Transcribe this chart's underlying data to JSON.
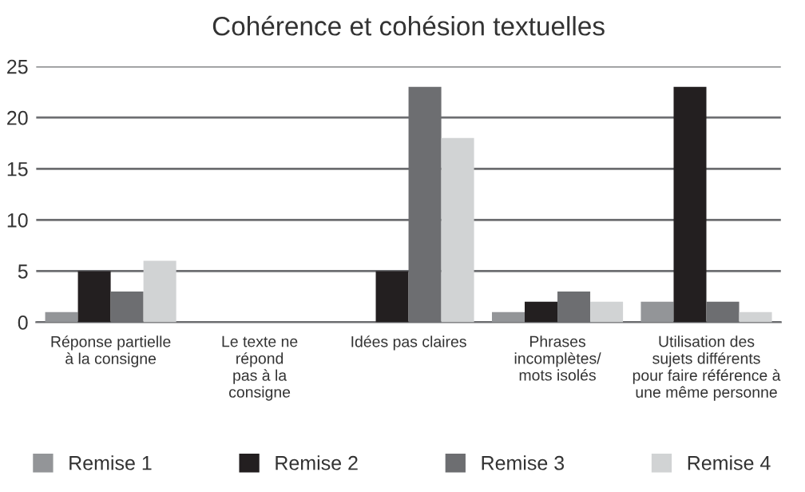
{
  "chart_data": {
    "type": "bar",
    "title": "Cohérence et cohésion textuelles",
    "categories": [
      "Réponse partielle\nà la consigne",
      "Le texte ne\nrépond\npas à la\nconsigne",
      "Idées pas claires",
      "Phrases\nincomplètes/\nmots isolés",
      "Utilisation des\nsujets différents\npour faire référence à\nune même personne"
    ],
    "series": [
      {
        "name": "Remise 1",
        "color": "#939598",
        "values": [
          1,
          0,
          0,
          1,
          2
        ]
      },
      {
        "name": "Remise 2",
        "color": "#231f20",
        "values": [
          5,
          0,
          5,
          2,
          23
        ]
      },
      {
        "name": "Remise 3",
        "color": "#6d6e71",
        "values": [
          3,
          0,
          23,
          3,
          2
        ]
      },
      {
        "name": "Remise 4",
        "color": "#d1d3d4",
        "values": [
          6,
          0,
          18,
          2,
          1
        ]
      }
    ],
    "ylim": [
      0,
      25
    ],
    "yticks": [
      0,
      5,
      10,
      15,
      20,
      25
    ],
    "grid": "y",
    "legend": "bottom"
  }
}
